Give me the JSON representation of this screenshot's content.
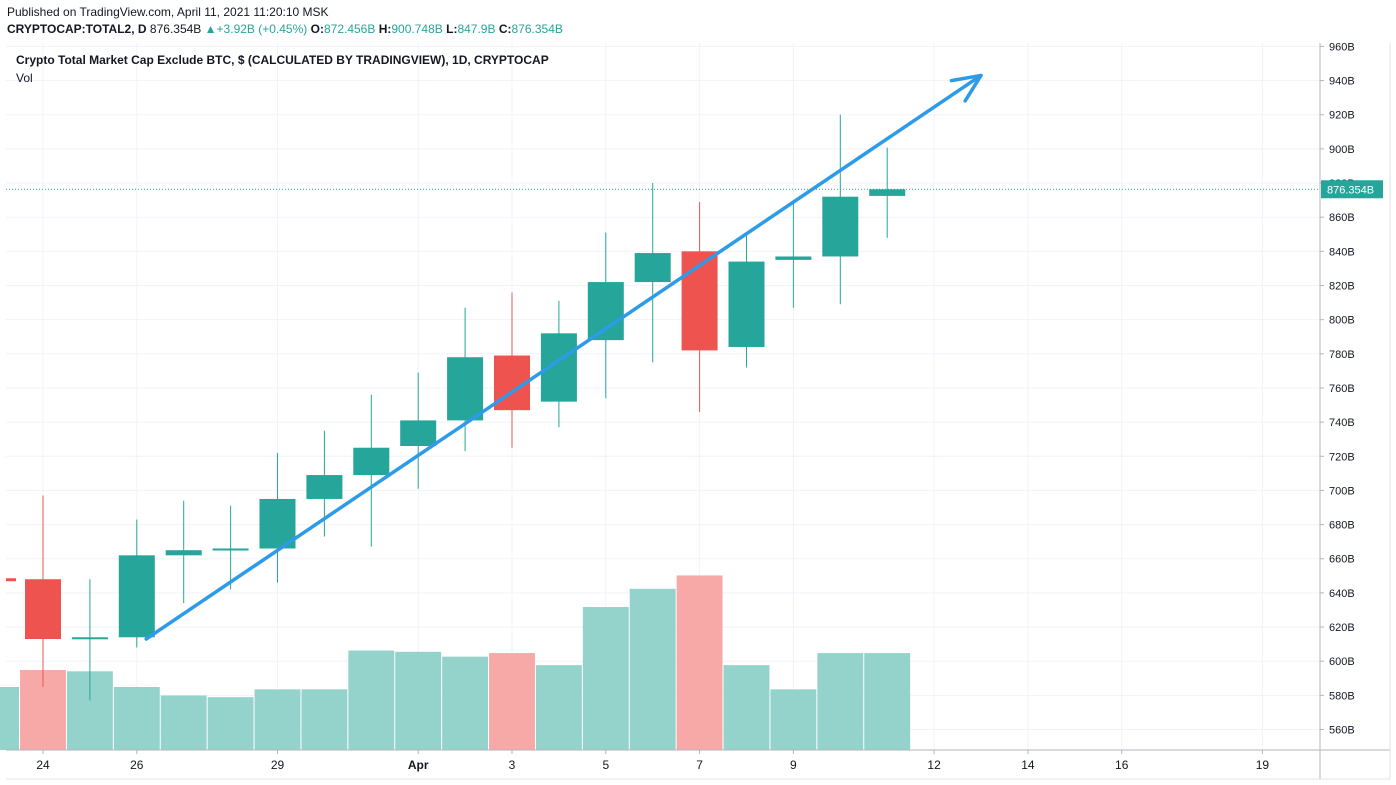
{
  "header": {
    "published": "Published on TradingView.com, April 11, 2021 11:20:10 MSK",
    "symbol": "CRYPTOCAP:TOTAL2, D",
    "last": "876.354B",
    "change": "+3.92B (+0.45%)",
    "open_label": "O:",
    "open": "872.456B",
    "high_label": "H:",
    "high": "900.748B",
    "low_label": "L:",
    "low": "847.9B",
    "close_label": "C:",
    "close": "876.354B"
  },
  "legend": {
    "title": "Crypto Total Market Cap Exclude BTC, $ (CALCULATED BY TRADINGVIEW), 1D, CRYPTOCAP",
    "volume_label": "Vol"
  },
  "colors": {
    "up": "#26a69a",
    "down": "#ef5350",
    "vol_up": "#94d3cc",
    "vol_down": "#f7a9a7",
    "arrow": "#2e9be8",
    "grid": "#f0f3fa"
  },
  "chart_data": {
    "type": "candlestick",
    "ylim": [
      548,
      962
    ],
    "y_ticks": [
      "960B",
      "940B",
      "920B",
      "900B",
      "880B",
      "860B",
      "840B",
      "820B",
      "800B",
      "780B",
      "760B",
      "740B",
      "720B",
      "700B",
      "680B",
      "660B",
      "640B",
      "620B",
      "600B",
      "580B",
      "560B"
    ],
    "y_tick_values": [
      960,
      940,
      920,
      900,
      880,
      860,
      840,
      820,
      800,
      780,
      760,
      740,
      720,
      700,
      680,
      660,
      640,
      620,
      600,
      580,
      560
    ],
    "x_ticks": [
      {
        "label": "24",
        "day": 24
      },
      {
        "label": "26",
        "day": 26
      },
      {
        "label": "29",
        "day": 29
      },
      {
        "label": "Apr",
        "day": 32
      },
      {
        "label": "3",
        "day": 34
      },
      {
        "label": "5",
        "day": 36
      },
      {
        "label": "7",
        "day": 38
      },
      {
        "label": "9",
        "day": 40
      },
      {
        "label": "12",
        "day": 43
      },
      {
        "label": "14",
        "day": 45
      },
      {
        "label": "16",
        "day": 47
      },
      {
        "label": "19",
        "day": 50
      }
    ],
    "last_price_label": "876.354B",
    "last_price": 876.354,
    "candles": [
      {
        "day": 24,
        "o": 648,
        "h": 697,
        "l": 585,
        "c": 613
      },
      {
        "day": 25,
        "o": 613,
        "h": 648,
        "l": 577,
        "c": 614
      },
      {
        "day": 26,
        "o": 614,
        "h": 683,
        "l": 608,
        "c": 662
      },
      {
        "day": 27,
        "o": 662,
        "h": 694,
        "l": 634,
        "c": 665
      },
      {
        "day": 28,
        "o": 665,
        "h": 691,
        "l": 642,
        "c": 666
      },
      {
        "day": 29,
        "o": 666,
        "h": 722,
        "l": 646,
        "c": 695
      },
      {
        "day": 30,
        "o": 695,
        "h": 735,
        "l": 673,
        "c": 709
      },
      {
        "day": 31,
        "o": 709,
        "h": 756,
        "l": 667,
        "c": 725
      },
      {
        "day": 32,
        "o": 726,
        "h": 769,
        "l": 701,
        "c": 741
      },
      {
        "day": 33,
        "o": 741,
        "h": 807,
        "l": 723,
        "c": 778
      },
      {
        "day": 34,
        "o": 779,
        "h": 816,
        "l": 725,
        "c": 747
      },
      {
        "day": 35,
        "o": 752,
        "h": 811,
        "l": 737,
        "c": 792
      },
      {
        "day": 36,
        "o": 788,
        "h": 851,
        "l": 754,
        "c": 822
      },
      {
        "day": 37,
        "o": 822,
        "h": 880,
        "l": 775,
        "c": 839
      },
      {
        "day": 38,
        "o": 840,
        "h": 869,
        "l": 746,
        "c": 782
      },
      {
        "day": 39,
        "o": 784,
        "h": 849,
        "l": 772,
        "c": 834
      },
      {
        "day": 40,
        "o": 835,
        "h": 870,
        "l": 807,
        "c": 837
      },
      {
        "day": 41,
        "o": 837,
        "h": 920,
        "l": 809,
        "c": 872
      },
      {
        "day": 42,
        "o": 872.456,
        "h": 900.748,
        "l": 847.9,
        "c": 876.354
      }
    ],
    "volume_relative": [
      {
        "day": 23,
        "v": 0.297,
        "dir": "up"
      },
      {
        "day": 24,
        "v": 0.377,
        "dir": "down"
      },
      {
        "day": 25,
        "v": 0.371,
        "dir": "up"
      },
      {
        "day": 26,
        "v": 0.297,
        "dir": "up"
      },
      {
        "day": 27,
        "v": 0.257,
        "dir": "up"
      },
      {
        "day": 28,
        "v": 0.249,
        "dir": "up"
      },
      {
        "day": 29,
        "v": 0.286,
        "dir": "up"
      },
      {
        "day": 30,
        "v": 0.286,
        "dir": "up"
      },
      {
        "day": 31,
        "v": 0.469,
        "dir": "up"
      },
      {
        "day": 32,
        "v": 0.463,
        "dir": "up"
      },
      {
        "day": 33,
        "v": 0.44,
        "dir": "up"
      },
      {
        "day": 34,
        "v": 0.457,
        "dir": "down"
      },
      {
        "day": 35,
        "v": 0.4,
        "dir": "up"
      },
      {
        "day": 36,
        "v": 0.674,
        "dir": "up"
      },
      {
        "day": 37,
        "v": 0.76,
        "dir": "up"
      },
      {
        "day": 38,
        "v": 0.823,
        "dir": "down"
      },
      {
        "day": 39,
        "v": 0.4,
        "dir": "up"
      },
      {
        "day": 40,
        "v": 0.286,
        "dir": "up"
      },
      {
        "day": 41,
        "v": 0.457,
        "dir": "up"
      },
      {
        "day": 42,
        "v": 0.457,
        "dir": "up"
      }
    ],
    "trend_arrow": {
      "from_day": 26.2,
      "from_price": 613,
      "to_day": 44,
      "to_price": 943
    }
  }
}
